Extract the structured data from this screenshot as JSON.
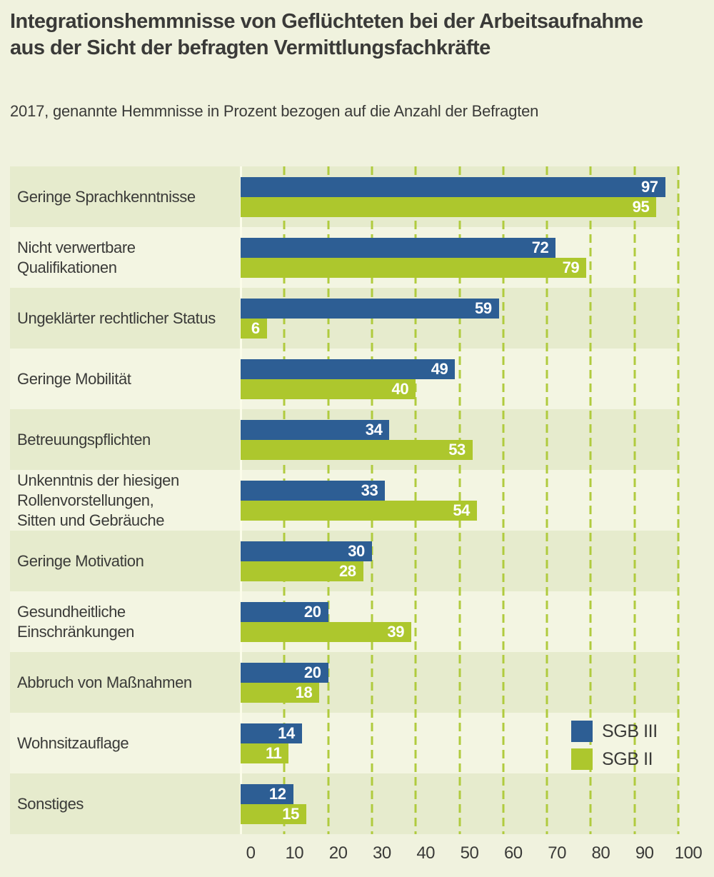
{
  "header": {
    "title_lines": [
      "Integrationshemmnisse von Geflüchteten bei der Arbeitsaufnahme",
      "aus der Sicht der befragten Vermittlungsfachkräfte"
    ],
    "subtitle": "2017, genannte Hemmnisse in Prozent bezogen auf die Anzahl der Befragten"
  },
  "legend": [
    {
      "label": "SGB III",
      "color": "#2d5e94"
    },
    {
      "label": "SGB II",
      "color": "#adc72d"
    }
  ],
  "colors": {
    "page_background": "#f0f2de",
    "band_dark": "#e6ebcd",
    "band_light": "#f3f5e2",
    "bar_blue": "#2d5e94",
    "bar_green": "#adc72d",
    "gridline": "#b0cb3e",
    "zero_line": "#fbfce9",
    "text": "#3a3a38",
    "value_label": "#ffffff"
  },
  "chart_data": {
    "type": "bar",
    "orientation": "horizontal",
    "title": "Integrationshemmnisse von Geflüchteten bei der Arbeitsaufnahme aus der Sicht der befragten Vermittlungsfachkräfte",
    "subtitle": "2017, genannte Hemmnisse in Prozent bezogen auf die Anzahl der Befragten",
    "xlabel": "",
    "ylabel": "",
    "xlim": [
      0,
      100
    ],
    "xticks": [
      0,
      10,
      20,
      30,
      40,
      50,
      60,
      70,
      80,
      90,
      100
    ],
    "grid": "dashed-vertical",
    "legend_position": "inside-bottom-right",
    "categories_lines": [
      [
        "Geringe Sprachkenntnisse"
      ],
      [
        "Nicht verwertbare",
        "Qualifikationen"
      ],
      [
        "Ungeklärter rechtlicher Status"
      ],
      [
        "Geringe Mobilität"
      ],
      [
        "Betreuungspflichten"
      ],
      [
        "Unkenntnis der hiesigen",
        "Rollenvorstellungen,",
        "Sitten und Gebräuche"
      ],
      [
        "Geringe Motivation"
      ],
      [
        "Gesundheitliche",
        "Einschränkungen"
      ],
      [
        "Abbruch von Maßnahmen"
      ],
      [
        "Wohnsitzauflage"
      ],
      [
        "Sonstiges"
      ]
    ],
    "series": [
      {
        "name": "SGB III",
        "color": "#2d5e94",
        "values": [
          97,
          72,
          59,
          49,
          34,
          33,
          30,
          20,
          20,
          14,
          12
        ]
      },
      {
        "name": "SGB II",
        "color": "#adc72d",
        "values": [
          95,
          79,
          6,
          40,
          53,
          54,
          28,
          39,
          18,
          11,
          15
        ]
      }
    ]
  }
}
